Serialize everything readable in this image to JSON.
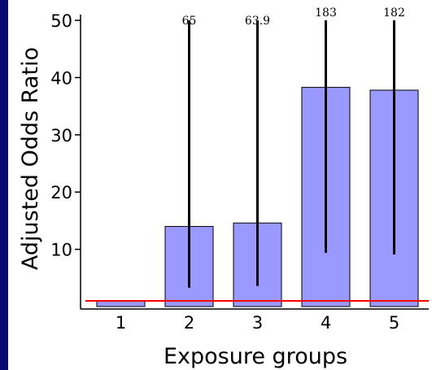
{
  "chart_data": {
    "type": "bar",
    "xlabel": "Exposure groups",
    "ylabel": "Adjusted Odds Ratio",
    "ylim": [
      0,
      50
    ],
    "y_ticks": [
      10,
      20,
      30,
      40,
      50
    ],
    "categories": [
      "1",
      "2",
      "3",
      "4",
      "5"
    ],
    "values": [
      1,
      14,
      14.6,
      38.3,
      37.8
    ],
    "error_lower": [
      1,
      3.3,
      3.6,
      9.4,
      9.1
    ],
    "error_upper": [
      1,
      65,
      63.9,
      183,
      182
    ],
    "upper_labels": [
      "",
      "65",
      "63.9",
      "183",
      "182"
    ],
    "reference_line": 1,
    "colors": {
      "bar_fill": "#9999ff",
      "bar_stroke": "#000000",
      "reference_line": "#ff0000",
      "error_bar": "#000000"
    }
  }
}
